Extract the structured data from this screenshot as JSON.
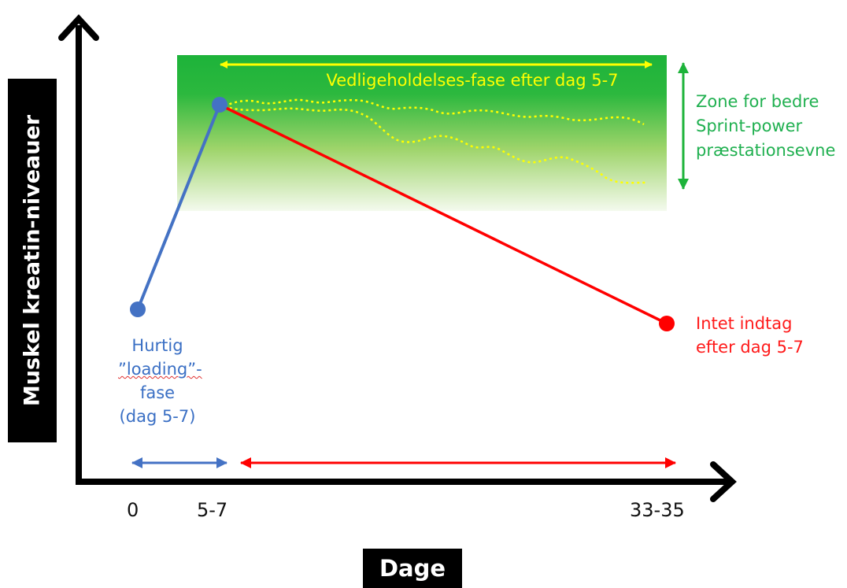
{
  "y_axis_label": "Muskel kreatin-niveauer",
  "x_axis_label": "Dage",
  "x_ticks": [
    "0",
    "5-7",
    "33-35"
  ],
  "zone_label_lines": [
    "Zone for bedre",
    "Sprint-power",
    "præstationsevne"
  ],
  "maintenance_label": "Vedligeholdelses-fase efter dag 5-7",
  "loading_label_lines": [
    "Hurtig",
    "”loading”-",
    "fase",
    "(dag 5-7)"
  ],
  "no_intake_label_lines": [
    "Intet indtag",
    "efter dag 5-7"
  ],
  "colors": {
    "zone_green": "#1db33a",
    "zone_label": "#20b050",
    "maintenance": "#ffff00",
    "loading": "#4472c4",
    "no_intake": "#ff0000",
    "axis": "#000000"
  }
}
